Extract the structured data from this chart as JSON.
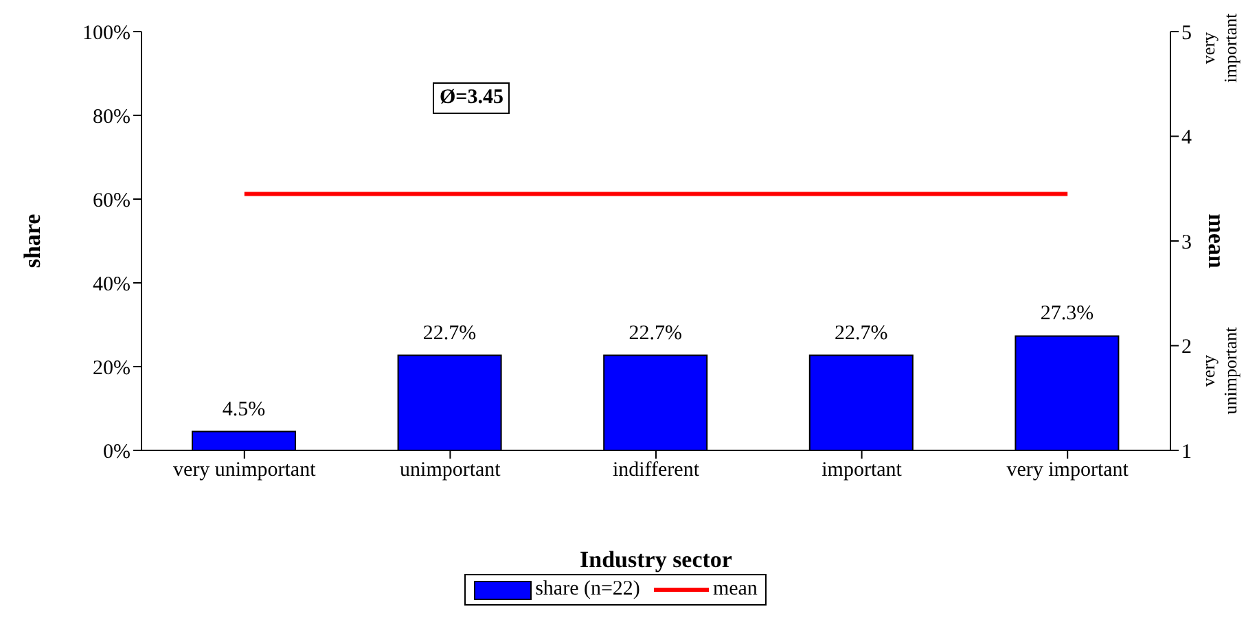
{
  "chart_data": {
    "type": "bar",
    "xlabel": "Industry sector",
    "ylabel": "share",
    "y2label": "mean",
    "categories": [
      "very unimportant",
      "unimportant",
      "indifferent",
      "important",
      "very important"
    ],
    "series": [
      {
        "name": "share (n=22)",
        "color": "#0000ff",
        "values": [
          4.5,
          22.7,
          22.7,
          22.7,
          27.3
        ],
        "value_labels": [
          "4.5%",
          "22.7%",
          "22.7%",
          "22.7%",
          "27.3%"
        ]
      },
      {
        "name": "mean",
        "type": "line",
        "axis": "y2",
        "color": "#ff0000",
        "values": [
          3.45,
          3.45,
          3.45,
          3.45,
          3.45
        ]
      }
    ],
    "ylim": [
      0,
      100
    ],
    "yticks": [
      {
        "value": 0,
        "label": "0%"
      },
      {
        "value": 20,
        "label": "20%"
      },
      {
        "value": 40,
        "label": "40%"
      },
      {
        "value": 60,
        "label": "60%"
      },
      {
        "value": 80,
        "label": "80%"
      },
      {
        "value": 100,
        "label": "100%"
      }
    ],
    "y2lim": [
      1,
      5
    ],
    "y2ticks": [
      1,
      2,
      3,
      4,
      5
    ],
    "annotations": [
      "Ø=3.45",
      "very important",
      "very unimportant"
    ],
    "marker": "none",
    "grid": false,
    "legend": "bottom"
  }
}
